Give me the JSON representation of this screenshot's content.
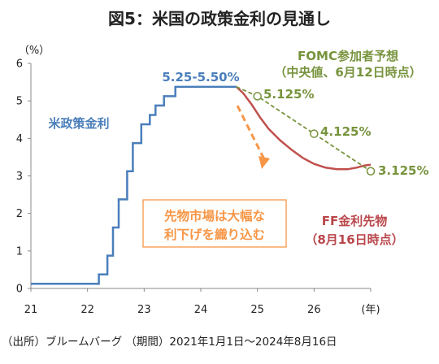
{
  "chart_data": {
    "type": "line",
    "title": "図5：米国の政策金利の見通し",
    "y_unit_label": "（%）",
    "x_unit_label": "(年)",
    "source_note": "（出所）ブルームバーグ （期間）2021年1月1日～2024年8月16日",
    "xlim": [
      21,
      27
    ],
    "ylim": [
      0,
      6
    ],
    "x_ticks": [
      21,
      22,
      23,
      24,
      25,
      26,
      27
    ],
    "x_tick_labels": [
      "21",
      "22",
      "23",
      "24",
      "25",
      "26",
      "(年)"
    ],
    "y_ticks": [
      0,
      1,
      2,
      3,
      4,
      5,
      6
    ],
    "y_tick_labels": [
      "0",
      "1",
      "2",
      "3",
      "4",
      "5",
      "6"
    ],
    "grid": false,
    "series": [
      {
        "name": "米政策金利",
        "color": "#4a7ebb",
        "style": "solid-step",
        "x": [
          21.0,
          22.2,
          22.2,
          22.35,
          22.35,
          22.45,
          22.45,
          22.55,
          22.55,
          22.7,
          22.7,
          22.8,
          22.8,
          22.95,
          22.95,
          23.1,
          23.1,
          23.2,
          23.2,
          23.35,
          23.35,
          23.55,
          23.55,
          24.63
        ],
        "values": [
          0.125,
          0.125,
          0.375,
          0.375,
          0.875,
          0.875,
          1.625,
          1.625,
          2.375,
          2.375,
          3.125,
          3.125,
          3.875,
          3.875,
          4.375,
          4.375,
          4.625,
          4.625,
          4.875,
          4.875,
          5.125,
          5.125,
          5.375,
          5.375
        ]
      },
      {
        "name": "FF金利先物",
        "color": "#c0504d",
        "style": "solid",
        "x": [
          24.63,
          24.75,
          24.9,
          25.05,
          25.2,
          25.4,
          25.6,
          25.8,
          26.0,
          26.2,
          26.4,
          26.6,
          26.75,
          26.9,
          27.0
        ],
        "values": [
          5.375,
          5.2,
          4.9,
          4.55,
          4.25,
          3.95,
          3.7,
          3.48,
          3.32,
          3.22,
          3.18,
          3.18,
          3.22,
          3.28,
          3.3
        ]
      },
      {
        "name": "FOMC参加者予想",
        "color": "#77933c",
        "style": "dashed-markers",
        "x": [
          24.63,
          25.0,
          26.0,
          27.0
        ],
        "values": [
          5.375,
          5.125,
          4.125,
          3.125
        ]
      }
    ],
    "annotations": {
      "range_label": "5.25-5.50%",
      "fomc_title": "FOMC参加者予想",
      "fomc_subtitle": "（中央値、6月12日時点）",
      "fomc_points": [
        "5.125%",
        "4.125%",
        "3.125%"
      ],
      "policy_rate_label": "米政策金利",
      "futures_label_1": "FF金利先物",
      "futures_label_2": "（8月16日時点）",
      "market_box_line1": "先物市場は大幅な",
      "market_box_line2": "利下げを織り込む"
    },
    "colors": {
      "policy_rate": "#4a7ebb",
      "futures": "#c0504d",
      "fomc": "#77933c",
      "market_note": "#f79646"
    }
  }
}
